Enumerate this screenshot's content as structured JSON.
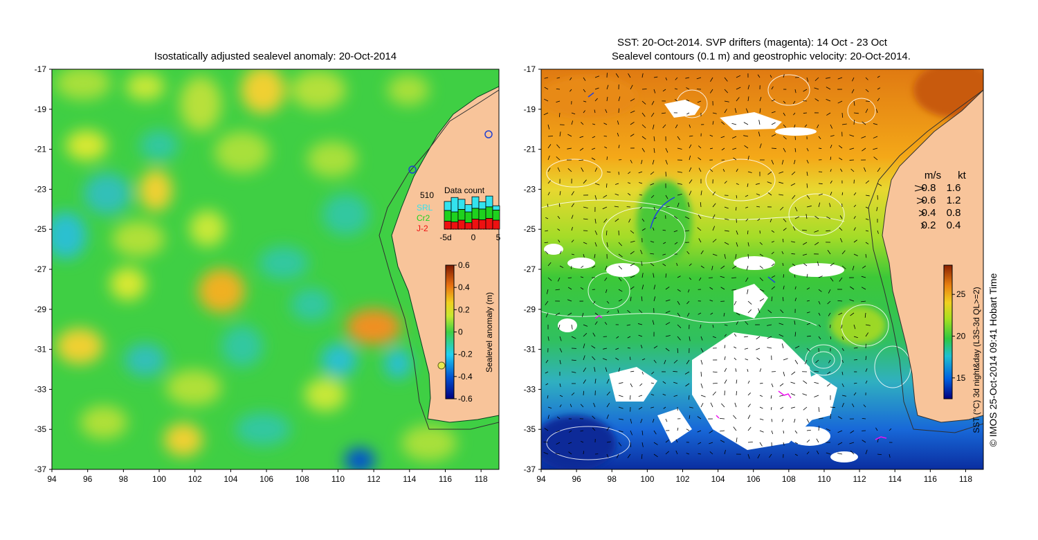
{
  "left_panel": {
    "title": "Isostatically adjusted sealevel anomaly: 20-Oct-2014",
    "colorbar": {
      "label": "Sealevel anomaly (m)",
      "ticks": [
        "0.6",
        "0.4",
        "0.2",
        "0",
        "-0.2",
        "-0.4",
        "-0.6"
      ],
      "values": [
        0.6,
        0.4,
        0.2,
        0,
        -0.2,
        -0.4,
        -0.6
      ]
    },
    "data_count": {
      "title": "Data count",
      "max_label": "510",
      "legend": [
        {
          "name": "SRL",
          "color": "#33e3ee"
        },
        {
          "name": "Cr2",
          "color": "#1ed21e"
        },
        {
          "name": "J-2",
          "color": "#ee1111"
        }
      ],
      "x_ticks": [
        "-5d",
        "0",
        "5"
      ],
      "bars": [
        {
          "j2": 0.22,
          "cr2": 0.3,
          "srl": 0.25
        },
        {
          "j2": 0.2,
          "cr2": 0.28,
          "srl": 0.4
        },
        {
          "j2": 0.25,
          "cr2": 0.3,
          "srl": 0.28
        },
        {
          "j2": 0.18,
          "cr2": 0.3,
          "srl": 0.2
        },
        {
          "j2": 0.28,
          "cr2": 0.3,
          "srl": 0.32
        },
        {
          "j2": 0.26,
          "cr2": 0.3,
          "srl": 0.2
        },
        {
          "j2": 0.3,
          "cr2": 0.32,
          "srl": 0.3
        },
        {
          "j2": 0.25,
          "cr2": 0.28,
          "srl": 0.12
        }
      ]
    },
    "colors": {
      "land": "#f8c49a",
      "background_field": "#3fcf44"
    }
  },
  "right_panel": {
    "title_line1": "SST: 20-Oct-2014. SVP drifters (magenta): 14 Oct - 23 Oct",
    "title_line2": "Sealevel contours (0.1 m) and geostrophic velocity: 20-Oct-2014.",
    "colorbar": {
      "label": "SST (°C) 3d night&day (L3S-3d QL>=2)",
      "ticks": [
        "25",
        "20",
        "15"
      ],
      "values": [
        25,
        20,
        15
      ]
    },
    "velocity_legend": {
      "header_ms": "m/s",
      "header_kt": "kt",
      "rows": [
        {
          "ms": "0.8",
          "kt": "1.6"
        },
        {
          "ms": "0.6",
          "kt": "1.2"
        },
        {
          "ms": "0.4",
          "kt": "0.8"
        },
        {
          "ms": "0.2",
          "kt": "0.4"
        }
      ]
    },
    "colors": {
      "land": "#f8c49a",
      "drifters": "#ee11ee",
      "contours": "#ffffff"
    }
  },
  "axes": {
    "lat_labels": [
      "-17",
      "-19",
      "-21",
      "-23",
      "-25",
      "-27",
      "-29",
      "-31",
      "-33",
      "-35",
      "-37"
    ],
    "lat_values": [
      -17,
      -19,
      -21,
      -23,
      -25,
      -27,
      -29,
      -31,
      -33,
      -35,
      -37
    ],
    "lon_labels": [
      "94",
      "96",
      "98",
      "100",
      "102",
      "104",
      "106",
      "108",
      "110",
      "112",
      "114",
      "116",
      "118"
    ],
    "lon_values": [
      94,
      96,
      98,
      100,
      102,
      104,
      106,
      108,
      110,
      112,
      114,
      116,
      118
    ]
  },
  "credit": "© IMOS 25-Oct-2014 09:41 Hobart Time"
}
